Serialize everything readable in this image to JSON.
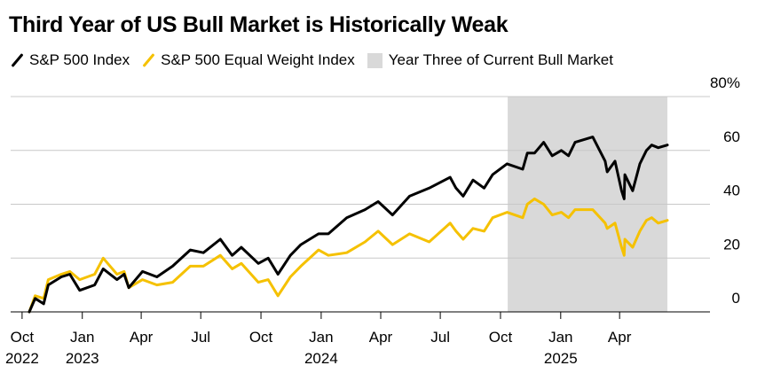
{
  "chart_data": {
    "type": "line",
    "title": "Third Year of US Bull Market is Historically Weak",
    "legend": [
      {
        "name": "S&P 500 Index",
        "color": "#000000",
        "kind": "line"
      },
      {
        "name": "S&P 500 Equal Weight Index",
        "color": "#f5c100",
        "kind": "line"
      },
      {
        "name": "Year Three of Current Bull Market",
        "color": "#d9d9d9",
        "kind": "shade"
      }
    ],
    "y_axis": {
      "min": 0,
      "max": 80,
      "ticks": [
        0,
        20,
        40,
        60,
        80
      ],
      "labels": [
        "0",
        "20",
        "40",
        "60",
        "80%"
      ],
      "unit": "%",
      "position": "right"
    },
    "x_axis": {
      "start": "2022-10-12",
      "end": "2025-06-13",
      "ticks": [
        {
          "date": "2022-10-01",
          "line1": "Oct",
          "line2": "2022"
        },
        {
          "date": "2023-01-01",
          "line1": "Jan",
          "line2": "2023"
        },
        {
          "date": "2023-04-01",
          "line1": "Apr",
          "line2": ""
        },
        {
          "date": "2023-07-01",
          "line1": "Jul",
          "line2": ""
        },
        {
          "date": "2023-10-01",
          "line1": "Oct",
          "line2": ""
        },
        {
          "date": "2024-01-01",
          "line1": "Jan",
          "line2": "2024"
        },
        {
          "date": "2024-04-01",
          "line1": "Apr",
          "line2": ""
        },
        {
          "date": "2024-07-01",
          "line1": "Jul",
          "line2": ""
        },
        {
          "date": "2024-10-01",
          "line1": "Oct",
          "line2": ""
        },
        {
          "date": "2025-01-01",
          "line1": "Jan",
          "line2": "2025"
        },
        {
          "date": "2025-04-01",
          "line1": "Apr",
          "line2": ""
        }
      ]
    },
    "shaded_region": {
      "start": "2024-10-12",
      "end": "2025-06-13",
      "label": "Year Three of Current Bull Market"
    },
    "series": [
      {
        "name": "S&P 500 Index",
        "color": "#000000",
        "points": [
          [
            "2022-10-12",
            0
          ],
          [
            "2022-10-21",
            5
          ],
          [
            "2022-11-03",
            3
          ],
          [
            "2022-11-10",
            10
          ],
          [
            "2022-11-30",
            13
          ],
          [
            "2022-12-13",
            14
          ],
          [
            "2022-12-28",
            8
          ],
          [
            "2023-01-20",
            10
          ],
          [
            "2023-02-02",
            16
          ],
          [
            "2023-02-23",
            12
          ],
          [
            "2023-03-06",
            14
          ],
          [
            "2023-03-13",
            9
          ],
          [
            "2023-04-03",
            15
          ],
          [
            "2023-04-25",
            13
          ],
          [
            "2023-05-19",
            17
          ],
          [
            "2023-06-15",
            23
          ],
          [
            "2023-07-05",
            22
          ],
          [
            "2023-07-31",
            27
          ],
          [
            "2023-08-18",
            21
          ],
          [
            "2023-09-01",
            24
          ],
          [
            "2023-09-27",
            18
          ],
          [
            "2023-10-12",
            20
          ],
          [
            "2023-10-27",
            14
          ],
          [
            "2023-11-15",
            21
          ],
          [
            "2023-12-01",
            25
          ],
          [
            "2023-12-28",
            29
          ],
          [
            "2024-01-12",
            29
          ],
          [
            "2024-02-09",
            35
          ],
          [
            "2024-03-08",
            38
          ],
          [
            "2024-03-28",
            41
          ],
          [
            "2024-04-19",
            36
          ],
          [
            "2024-05-15",
            43
          ],
          [
            "2024-06-14",
            46
          ],
          [
            "2024-07-16",
            50
          ],
          [
            "2024-07-25",
            46
          ],
          [
            "2024-08-05",
            43
          ],
          [
            "2024-08-20",
            49
          ],
          [
            "2024-09-06",
            46
          ],
          [
            "2024-09-19",
            51
          ],
          [
            "2024-10-11",
            55
          ],
          [
            "2024-11-04",
            53
          ],
          [
            "2024-11-11",
            59
          ],
          [
            "2024-11-22",
            59
          ],
          [
            "2024-12-06",
            63
          ],
          [
            "2024-12-19",
            58
          ],
          [
            "2025-01-02",
            60
          ],
          [
            "2025-01-13",
            58
          ],
          [
            "2025-01-23",
            63
          ],
          [
            "2025-02-19",
            65
          ],
          [
            "2025-03-10",
            56
          ],
          [
            "2025-03-13",
            52
          ],
          [
            "2025-03-25",
            56
          ],
          [
            "2025-04-04",
            45
          ],
          [
            "2025-04-08",
            42
          ],
          [
            "2025-04-09",
            51
          ],
          [
            "2025-04-21",
            45
          ],
          [
            "2025-05-02",
            55
          ],
          [
            "2025-05-12",
            60
          ],
          [
            "2025-05-20",
            62
          ],
          [
            "2025-05-30",
            61
          ],
          [
            "2025-06-13",
            62
          ]
        ]
      },
      {
        "name": "S&P 500 Equal Weight Index",
        "color": "#f5c100",
        "points": [
          [
            "2022-10-12",
            0
          ],
          [
            "2022-10-21",
            6
          ],
          [
            "2022-11-03",
            5
          ],
          [
            "2022-11-10",
            12
          ],
          [
            "2022-11-30",
            14
          ],
          [
            "2022-12-13",
            15
          ],
          [
            "2022-12-28",
            12
          ],
          [
            "2023-01-20",
            14
          ],
          [
            "2023-02-02",
            20
          ],
          [
            "2023-02-23",
            14
          ],
          [
            "2023-03-06",
            15
          ],
          [
            "2023-03-13",
            9
          ],
          [
            "2023-04-03",
            12
          ],
          [
            "2023-04-25",
            10
          ],
          [
            "2023-05-19",
            11
          ],
          [
            "2023-06-15",
            17
          ],
          [
            "2023-07-05",
            17
          ],
          [
            "2023-07-31",
            21
          ],
          [
            "2023-08-18",
            16
          ],
          [
            "2023-09-01",
            18
          ],
          [
            "2023-09-27",
            11
          ],
          [
            "2023-10-12",
            12
          ],
          [
            "2023-10-27",
            6
          ],
          [
            "2023-11-15",
            13
          ],
          [
            "2023-12-01",
            17
          ],
          [
            "2023-12-28",
            23
          ],
          [
            "2024-01-12",
            21
          ],
          [
            "2024-02-09",
            22
          ],
          [
            "2024-03-08",
            26
          ],
          [
            "2024-03-28",
            30
          ],
          [
            "2024-04-19",
            25
          ],
          [
            "2024-05-15",
            29
          ],
          [
            "2024-06-14",
            26
          ],
          [
            "2024-07-16",
            33
          ],
          [
            "2024-07-25",
            30
          ],
          [
            "2024-08-05",
            27
          ],
          [
            "2024-08-20",
            31
          ],
          [
            "2024-09-06",
            30
          ],
          [
            "2024-09-19",
            35
          ],
          [
            "2024-10-11",
            37
          ],
          [
            "2024-11-04",
            35
          ],
          [
            "2024-11-11",
            40
          ],
          [
            "2024-11-22",
            42
          ],
          [
            "2024-12-06",
            40
          ],
          [
            "2024-12-19",
            36
          ],
          [
            "2025-01-02",
            37
          ],
          [
            "2025-01-13",
            35
          ],
          [
            "2025-01-23",
            38
          ],
          [
            "2025-02-19",
            38
          ],
          [
            "2025-03-10",
            33
          ],
          [
            "2025-03-13",
            31
          ],
          [
            "2025-03-25",
            33
          ],
          [
            "2025-04-04",
            24
          ],
          [
            "2025-04-08",
            21
          ],
          [
            "2025-04-09",
            27
          ],
          [
            "2025-04-21",
            24
          ],
          [
            "2025-05-02",
            30
          ],
          [
            "2025-05-12",
            34
          ],
          [
            "2025-05-20",
            35
          ],
          [
            "2025-05-30",
            33
          ],
          [
            "2025-06-13",
            34
          ]
        ]
      }
    ]
  }
}
